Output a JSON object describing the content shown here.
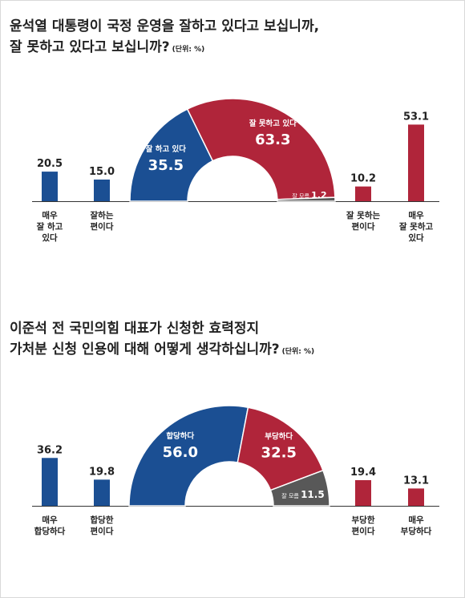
{
  "colors": {
    "positive": "#1b4f93",
    "negative": "#b0253a",
    "neutral": "#585858",
    "baseline": "#333333",
    "text": "#222222"
  },
  "chart_data": [
    {
      "type": "bar+half-donut",
      "title_line1": "윤석열 대통령이 국정 운영을 잘하고 있다고 보십니까,",
      "title_line2": "잘 못하고 있다고 보십니까?",
      "unit": "(단위: %)",
      "bars": [
        {
          "label_lines": [
            "매우",
            "잘 하고",
            "있다"
          ],
          "value": 20.5,
          "value_text": "20.5",
          "color": "positive"
        },
        {
          "label_lines": [
            "잘하는",
            "편이다"
          ],
          "value": 15.0,
          "value_text": "15.0",
          "color": "positive"
        },
        {
          "label_lines": [
            "잘 못하는",
            "편이다"
          ],
          "value": 10.2,
          "value_text": "10.2",
          "color": "negative"
        },
        {
          "label_lines": [
            "매우",
            "잘 못하고",
            "있다"
          ],
          "value": 53.1,
          "value_text": "53.1",
          "color": "negative"
        }
      ],
      "donut": [
        {
          "label": "잘 하고 있다",
          "value": 35.5,
          "value_text": "35.5",
          "color": "positive"
        },
        {
          "label": "잘 못하고 있다",
          "value": 63.3,
          "value_text": "63.3",
          "color": "negative"
        },
        {
          "label": "잘 모름",
          "value": 1.2,
          "value_text": "1.2",
          "color": "neutral"
        }
      ]
    },
    {
      "type": "bar+half-donut",
      "title_line1": "이준석 전 국민의힘 대표가 신청한 효력정지",
      "title_line2": "가처분 신청 인용에 대해 어떻게 생각하십니까?",
      "unit": "(단위: %)",
      "bars": [
        {
          "label_lines": [
            "매우",
            "합당하다"
          ],
          "value": 36.2,
          "value_text": "36.2",
          "color": "positive"
        },
        {
          "label_lines": [
            "합당한",
            "편이다"
          ],
          "value": 19.8,
          "value_text": "19.8",
          "color": "positive"
        },
        {
          "label_lines": [
            "부당한",
            "편이다"
          ],
          "value": 19.4,
          "value_text": "19.4",
          "color": "negative"
        },
        {
          "label_lines": [
            "매우",
            "부당하다"
          ],
          "value": 13.1,
          "value_text": "13.1",
          "color": "negative"
        }
      ],
      "donut": [
        {
          "label": "합당하다",
          "value": 56.0,
          "value_text": "56.0",
          "color": "positive"
        },
        {
          "label": "부당하다",
          "value": 32.5,
          "value_text": "32.5",
          "color": "negative"
        },
        {
          "label": "잘 모름",
          "value": 11.5,
          "value_text": "11.5",
          "color": "neutral"
        }
      ]
    }
  ]
}
